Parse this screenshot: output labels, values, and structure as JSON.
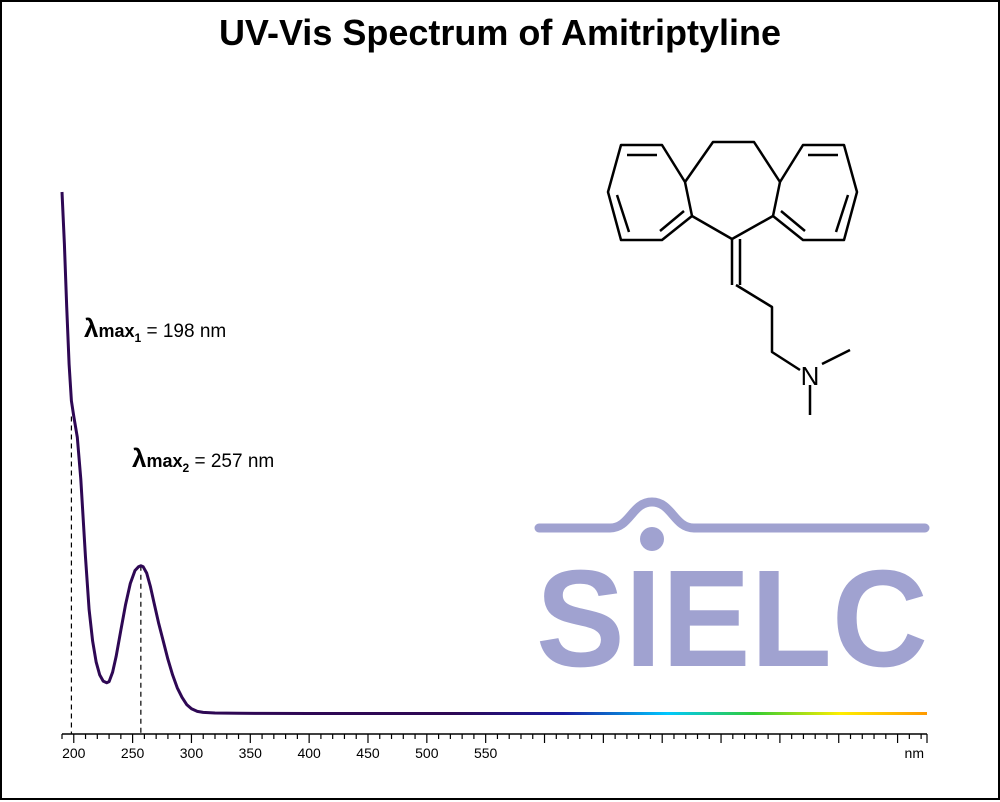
{
  "title": "UV-Vis Spectrum of Amitriptyline",
  "chart_data": {
    "type": "line",
    "title": "UV-Vis Spectrum of Amitriptyline",
    "xlabel": "",
    "ylabel": "",
    "x_unit": "nm",
    "xlim": [
      190,
      925
    ],
    "ticks": [
      200,
      250,
      300,
      350,
      400,
      450,
      500,
      550
    ],
    "tick_labels": [
      "200",
      "250",
      "300",
      "350",
      "400",
      "450",
      "500",
      "550"
    ],
    "unit_label": "nm",
    "ylim": [
      0,
      1
    ],
    "grid": false,
    "legend": "none",
    "series": [
      {
        "x": [
          190,
          192,
          194,
          196,
          198,
          200,
          203,
          206,
          210,
          213,
          216,
          219,
          222,
          225,
          228,
          230,
          233,
          236,
          240,
          244,
          248,
          252,
          255,
          257,
          259,
          262,
          265,
          268,
          272,
          276,
          280,
          284,
          288,
          292,
          296,
          300,
          305,
          310,
          320,
          340,
          360,
          400,
          450,
          500,
          550,
          600,
          650,
          700,
          750,
          800,
          850,
          900,
          925
        ],
        "y": [
          1.0,
          0.9,
          0.78,
          0.67,
          0.6,
          0.57,
          0.53,
          0.45,
          0.3,
          0.2,
          0.14,
          0.1,
          0.075,
          0.063,
          0.06,
          0.062,
          0.08,
          0.11,
          0.16,
          0.21,
          0.25,
          0.275,
          0.282,
          0.284,
          0.282,
          0.27,
          0.245,
          0.215,
          0.175,
          0.14,
          0.105,
          0.075,
          0.05,
          0.032,
          0.018,
          0.01,
          0.005,
          0.003,
          0.002,
          0.0015,
          0.0012,
          0.001,
          0.001,
          0.001,
          0.001,
          0.001,
          0.001,
          0.001,
          0.001,
          0.001,
          0.001,
          0.001,
          0.001
        ]
      }
    ],
    "annotations": [
      {
        "symbol": "λ",
        "sub": "max",
        "index": "1",
        "text": " = 198 nm",
        "x": 198,
        "y": 0.57
      },
      {
        "symbol": "λ",
        "sub": "max",
        "index": "2",
        "text": " = 257 nm",
        "x": 257,
        "y": 0.284
      }
    ],
    "gradient_colors": [
      "#2e0854",
      "#2e0854",
      "#1a1a9e",
      "#00c8ff",
      "#33cc33",
      "#ffee00",
      "#ff9900"
    ]
  },
  "logo": {
    "text": "SIELC",
    "color": "#a0a2d0"
  },
  "structure": {
    "atom_label": "N"
  }
}
